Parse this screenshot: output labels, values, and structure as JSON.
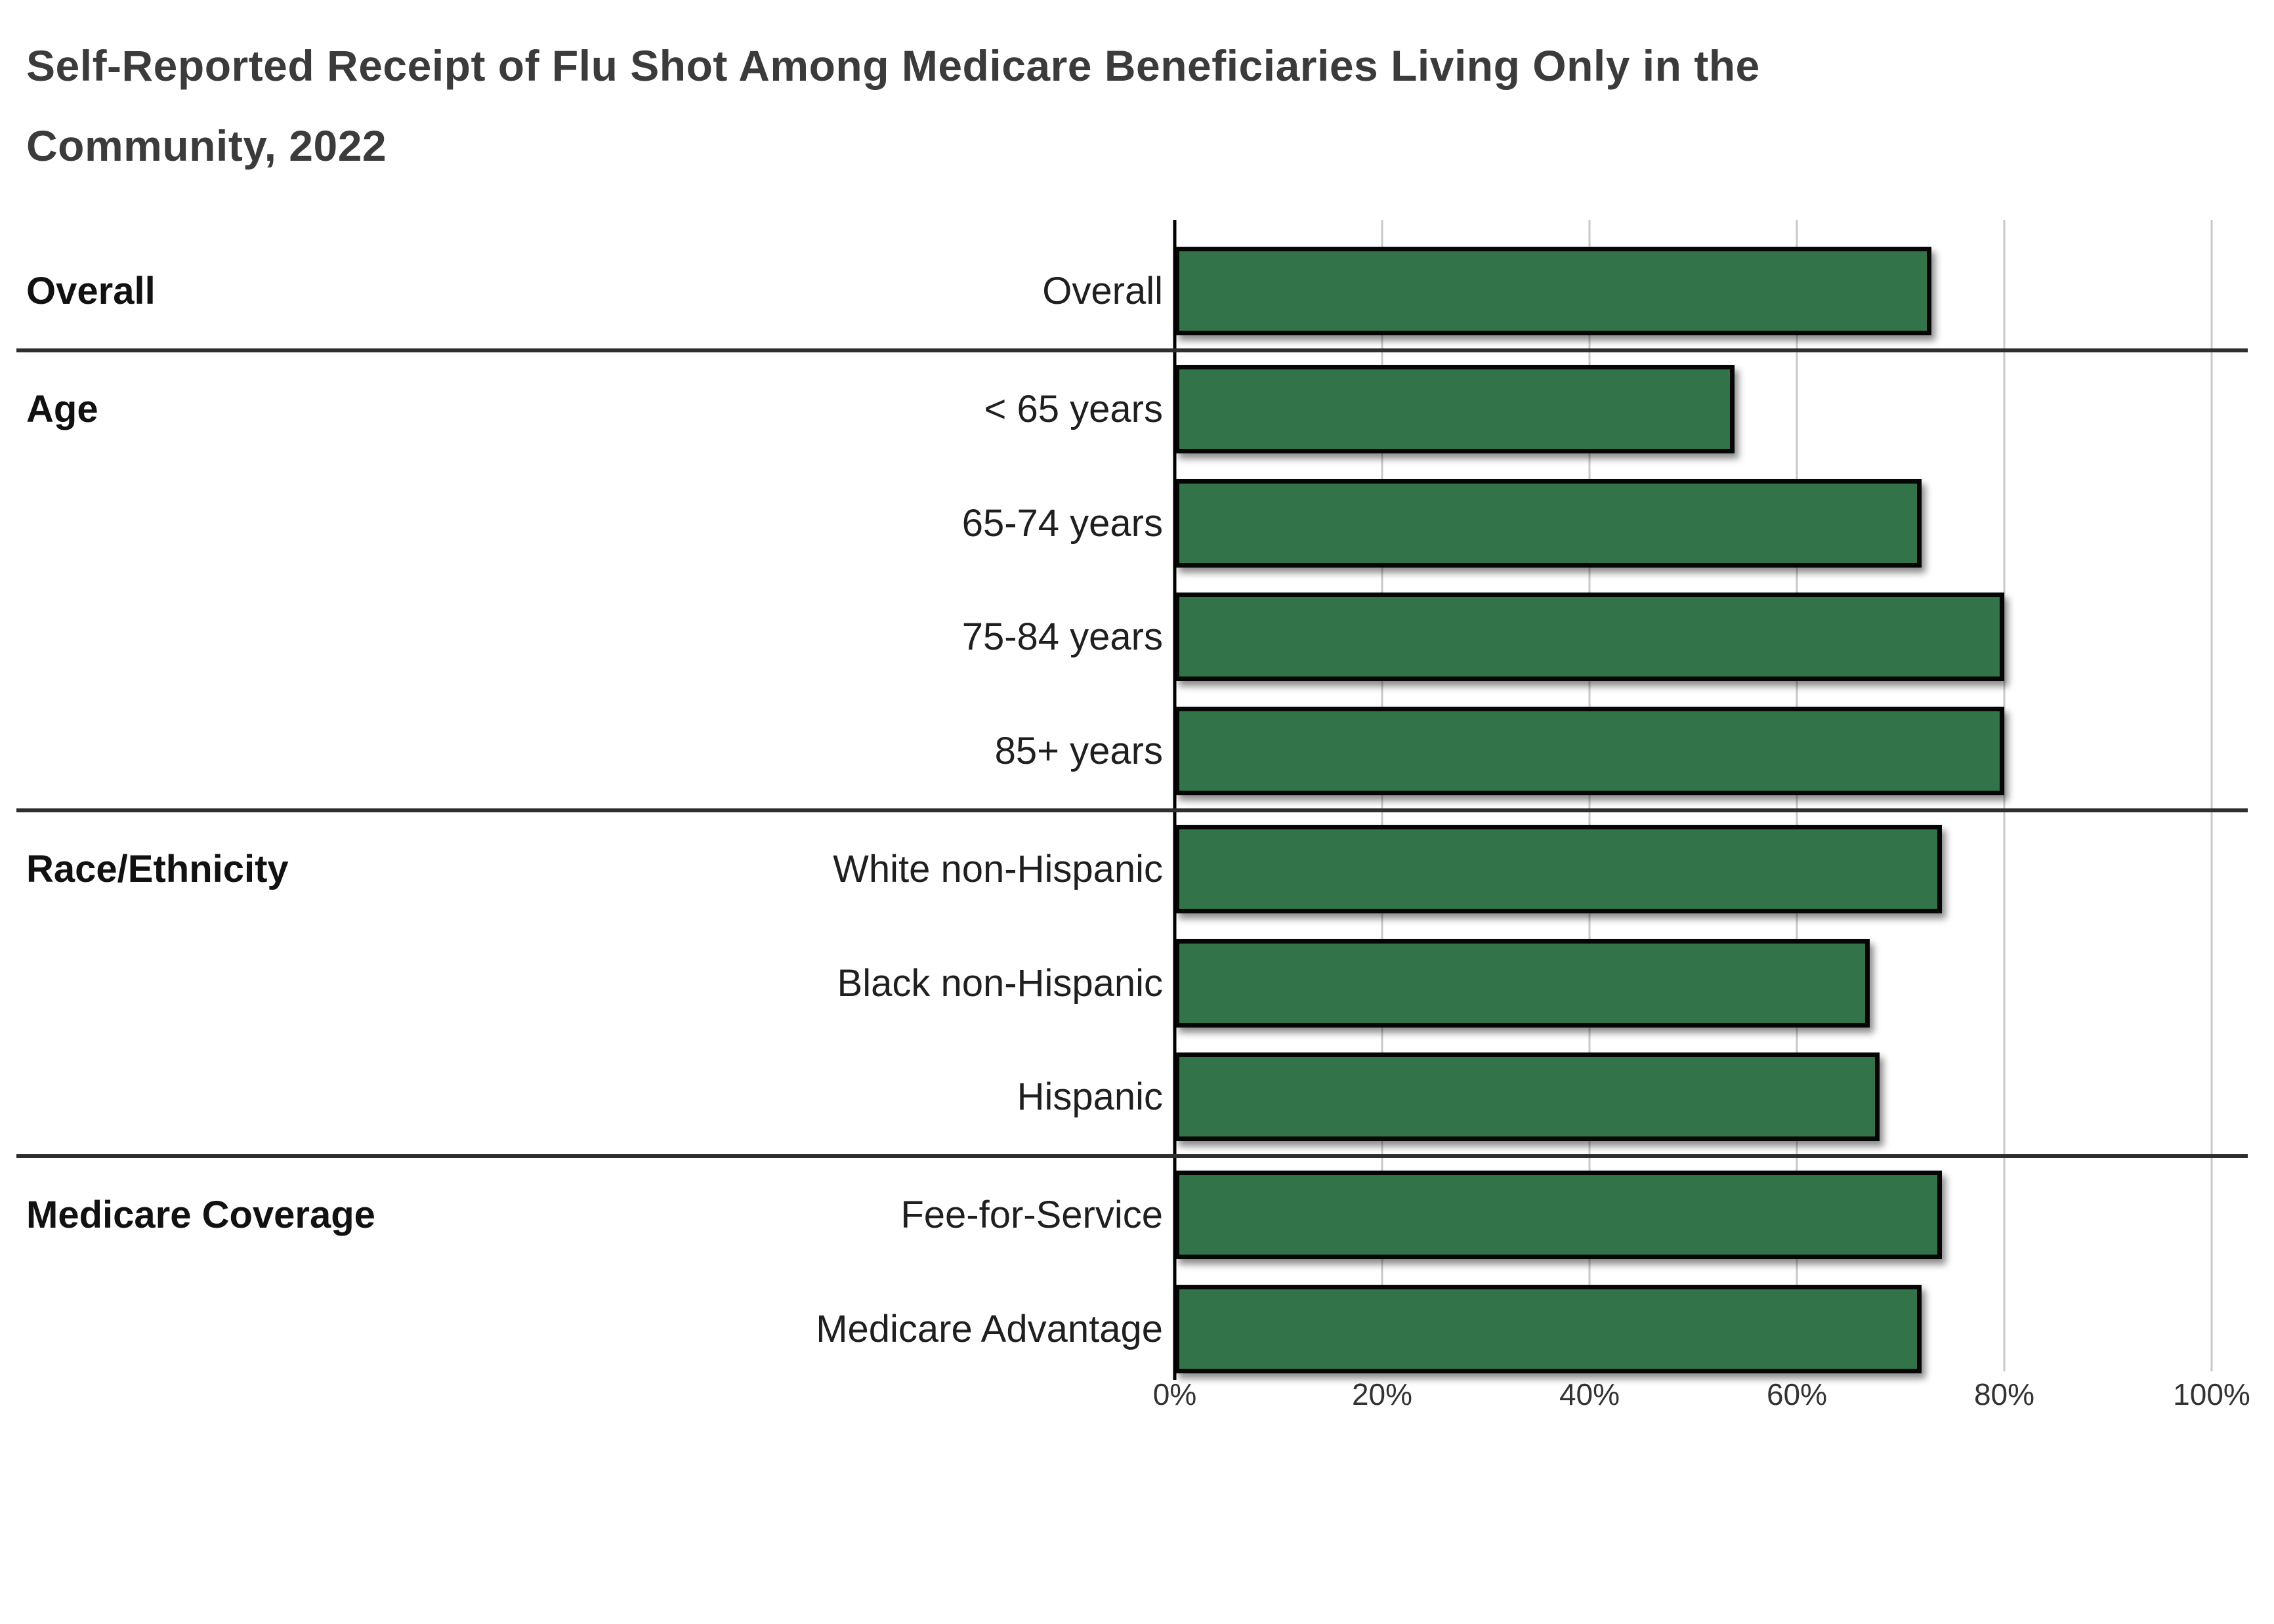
{
  "title": {
    "line1": "Self-Reported Receipt of Flu Shot Among Medicare Beneficiaries Living Only in the",
    "line2": "Community, 2022"
  },
  "chart_data": {
    "type": "bar",
    "orientation": "horizontal",
    "title": "Self-Reported Receipt of Flu Shot Among Medicare Beneficiaries Living Only in the Community, 2022",
    "xlabel": "",
    "ylabel": "",
    "value_unit": "%",
    "xlim": [
      0,
      100
    ],
    "x_tick_values": [
      0,
      20,
      40,
      60,
      80,
      100
    ],
    "x_tick_labels": [
      "0%",
      "20%",
      "40%",
      "60%",
      "80%",
      "100%"
    ],
    "grid": true,
    "legend": false,
    "bar_color": "#327349",
    "bar_border_color": "#060606",
    "categories": [
      "Overall",
      "< 65 years",
      "65-74 years",
      "75-84 years",
      "85+ years",
      "White non-Hispanic",
      "Black non-Hispanic",
      "Hispanic",
      "Fee-for-Service",
      "Medicare Advantage"
    ],
    "values": [
      73,
      54,
      72,
      80,
      80,
      74,
      67,
      68,
      74,
      72
    ],
    "groups": [
      {
        "label": "Overall",
        "rows": [
          {
            "label": "Overall",
            "value": 73
          }
        ]
      },
      {
        "label": "Age",
        "rows": [
          {
            "label": "< 65 years",
            "value": 54
          },
          {
            "label": "65-74 years",
            "value": 72
          },
          {
            "label": "75-84 years",
            "value": 80
          },
          {
            "label": "85+ years",
            "value": 80
          }
        ]
      },
      {
        "label": "Race/Ethnicity",
        "rows": [
          {
            "label": "White non-Hispanic",
            "value": 74
          },
          {
            "label": "Black non-Hispanic",
            "value": 67
          },
          {
            "label": "Hispanic",
            "value": 68
          }
        ]
      },
      {
        "label": "Medicare Coverage",
        "rows": [
          {
            "label": "Fee-for-Service",
            "value": 74
          },
          {
            "label": "Medicare Advantage",
            "value": 72
          }
        ]
      }
    ]
  }
}
